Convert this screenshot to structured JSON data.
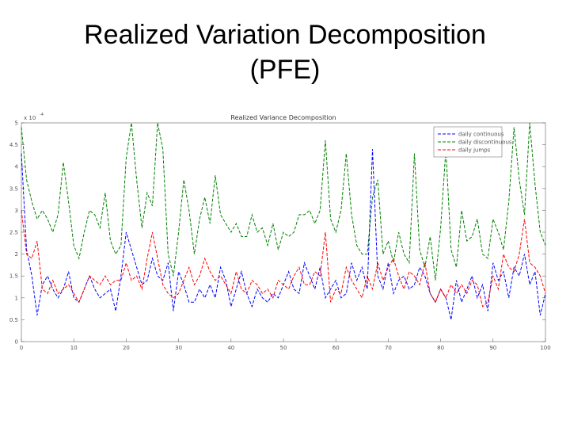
{
  "slide": {
    "title_line1": "Realized Variation Decomposition",
    "title_line2": "(PFE)"
  },
  "chart_data": {
    "type": "line",
    "title": "Realized Variance Decomposition",
    "xlabel": "",
    "ylabel": "",
    "y_exponent_label": "x 10",
    "y_exponent_power": "-4",
    "xlim": [
      0,
      100
    ],
    "ylim": [
      0,
      5
    ],
    "x_ticks": [
      "0",
      "10",
      "20",
      "30",
      "40",
      "50",
      "60",
      "70",
      "80",
      "90",
      "100"
    ],
    "y_ticks": [
      "0",
      "0.5",
      "1",
      "1.5",
      "2",
      "2.5",
      "3",
      "3.5",
      "4",
      "4.5",
      "5"
    ],
    "grid": false,
    "legend_position": "top-right",
    "line_style": "dashed",
    "x": [
      0,
      1,
      2,
      3,
      4,
      5,
      6,
      7,
      8,
      9,
      10,
      11,
      12,
      13,
      14,
      15,
      16,
      17,
      18,
      19,
      20,
      21,
      22,
      23,
      24,
      25,
      26,
      27,
      28,
      29,
      30,
      31,
      32,
      33,
      34,
      35,
      36,
      37,
      38,
      39,
      40,
      41,
      42,
      43,
      44,
      45,
      46,
      47,
      48,
      49,
      50,
      51,
      52,
      53,
      54,
      55,
      56,
      57,
      58,
      59,
      60,
      61,
      62,
      63,
      64,
      65,
      66,
      67,
      68,
      69,
      70,
      71,
      72,
      73,
      74,
      75,
      76,
      77,
      78,
      79,
      80,
      81,
      82,
      83,
      84,
      85,
      86,
      87,
      88,
      89,
      90,
      91,
      92,
      93,
      94,
      95,
      96,
      97,
      98,
      99,
      100
    ],
    "series": [
      {
        "name": "daily continuous",
        "color": "#0000ff",
        "values": [
          4.3,
          2.1,
          1.5,
          0.6,
          1.3,
          1.5,
          1.2,
          1.0,
          1.2,
          1.6,
          1.0,
          0.9,
          1.2,
          1.5,
          1.2,
          1.0,
          1.1,
          1.2,
          0.7,
          1.5,
          2.5,
          2.1,
          1.7,
          1.3,
          1.4,
          1.9,
          1.5,
          1.4,
          1.8,
          0.7,
          1.6,
          1.3,
          0.9,
          0.9,
          1.2,
          1.0,
          1.3,
          1.0,
          1.7,
          1.4,
          0.8,
          1.2,
          1.6,
          1.1,
          0.8,
          1.2,
          1.0,
          0.9,
          1.1,
          1.0,
          1.3,
          1.6,
          1.2,
          1.1,
          1.8,
          1.5,
          1.2,
          1.7,
          1.0,
          1.2,
          1.4,
          1.0,
          1.1,
          1.8,
          1.4,
          1.7,
          1.2,
          4.4,
          1.5,
          1.2,
          1.8,
          1.1,
          1.4,
          1.5,
          1.2,
          1.3,
          1.7,
          1.5,
          1.1,
          0.9,
          1.2,
          1.0,
          0.5,
          1.4,
          0.9,
          1.2,
          1.5,
          1.0,
          1.3,
          0.7,
          1.8,
          1.4,
          1.6,
          1.0,
          1.7,
          1.5,
          2.0,
          1.3,
          1.6,
          0.6,
          1.1
        ]
      },
      {
        "name": "daily discontinuous",
        "color": "#008000",
        "values": [
          4.9,
          3.7,
          3.2,
          2.8,
          3.0,
          2.8,
          2.5,
          2.9,
          4.1,
          3.2,
          2.2,
          1.9,
          2.5,
          3.0,
          2.9,
          2.6,
          3.4,
          2.3,
          2.0,
          2.2,
          4.2,
          5.2,
          3.7,
          2.6,
          3.4,
          3.1,
          5.0,
          4.4,
          2.0,
          1.5,
          2.5,
          3.7,
          3.0,
          2.0,
          2.8,
          3.3,
          2.7,
          3.8,
          2.9,
          2.7,
          2.5,
          2.7,
          2.4,
          2.4,
          2.9,
          2.5,
          2.6,
          2.2,
          2.7,
          2.1,
          2.5,
          2.4,
          2.5,
          2.9,
          2.9,
          3.0,
          2.7,
          3.0,
          4.6,
          2.8,
          2.5,
          3.0,
          4.3,
          2.9,
          2.2,
          2.0,
          2.0,
          3.3,
          3.7,
          2.0,
          2.3,
          1.8,
          2.5,
          2.0,
          1.8,
          4.3,
          2.1,
          1.7,
          2.4,
          1.4,
          2.6,
          4.4,
          2.1,
          1.7,
          3.0,
          2.3,
          2.4,
          2.8,
          2.0,
          1.9,
          2.8,
          2.5,
          2.1,
          3.2,
          4.9,
          3.7,
          2.9,
          5.0,
          3.6,
          2.5,
          2.2
        ]
      },
      {
        "name": "daily jumps",
        "color": "#ff0000",
        "values": [
          3.0,
          2.0,
          1.9,
          2.3,
          1.2,
          1.1,
          1.4,
          1.1,
          1.2,
          1.3,
          1.1,
          0.9,
          1.2,
          1.5,
          1.4,
          1.3,
          1.5,
          1.3,
          1.4,
          1.4,
          1.8,
          1.4,
          1.5,
          1.2,
          1.9,
          2.5,
          1.9,
          1.3,
          1.1,
          1.0,
          1.1,
          1.4,
          1.7,
          1.3,
          1.5,
          1.9,
          1.6,
          1.4,
          1.5,
          1.3,
          1.1,
          1.6,
          1.2,
          1.1,
          1.4,
          1.3,
          1.1,
          1.2,
          1.0,
          1.4,
          1.3,
          1.2,
          1.5,
          1.7,
          1.3,
          1.3,
          1.6,
          1.5,
          2.5,
          0.9,
          1.2,
          1.1,
          1.7,
          1.4,
          1.2,
          1.0,
          1.5,
          1.2,
          1.8,
          1.4,
          1.7,
          1.9,
          1.5,
          1.2,
          1.6,
          1.5,
          1.3,
          1.8,
          1.1,
          0.9,
          1.2,
          1.0,
          1.3,
          1.1,
          1.3,
          1.1,
          1.4,
          1.3,
          0.8,
          0.9,
          1.5,
          1.2,
          2.0,
          1.7,
          1.6,
          2.0,
          2.8,
          1.8,
          1.7,
          1.5,
          1.1
        ]
      }
    ]
  }
}
